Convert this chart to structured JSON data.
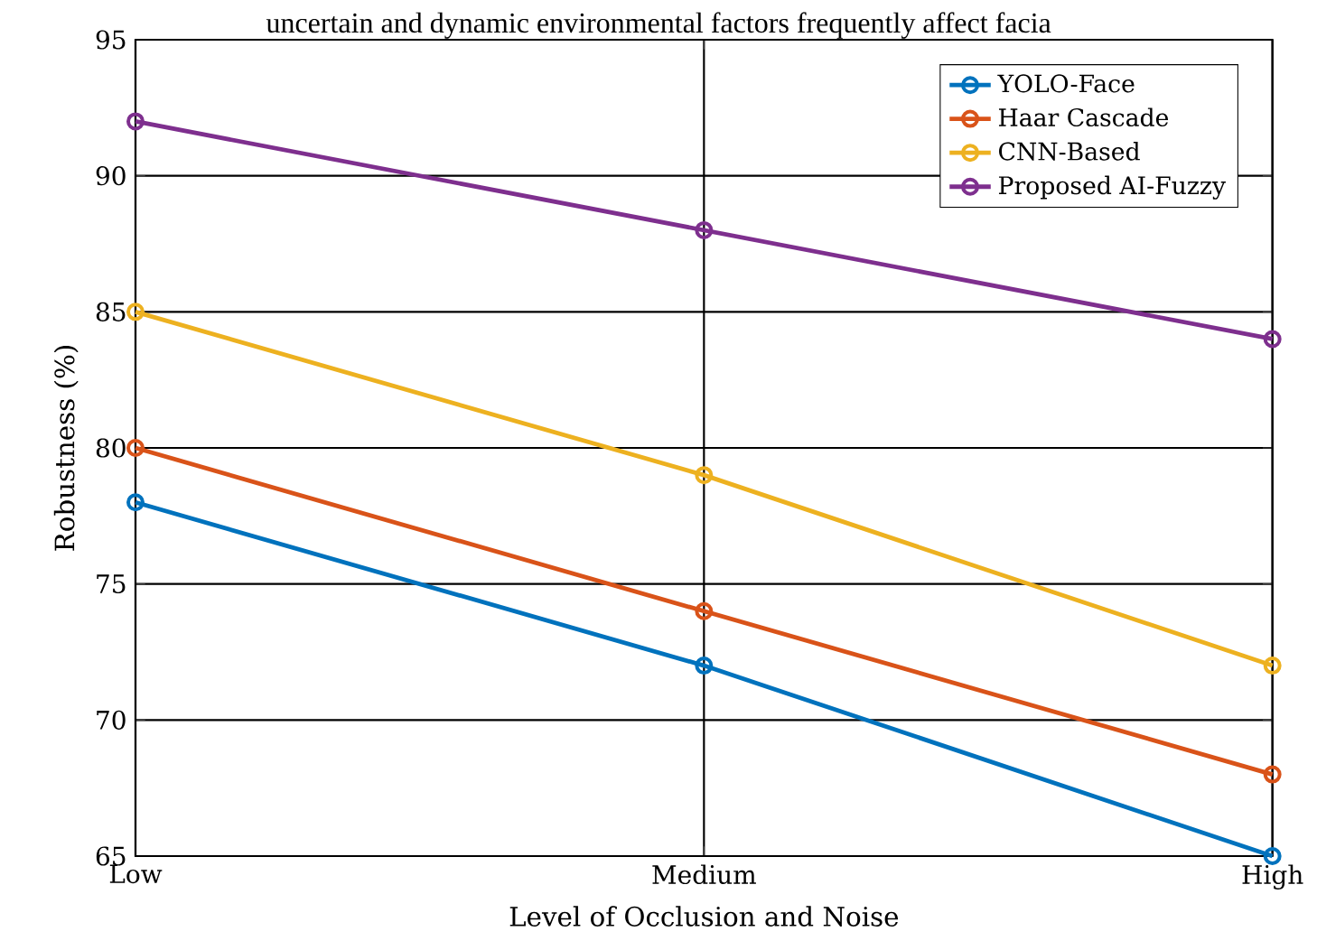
{
  "chart_data": {
    "type": "line",
    "annotations": [
      "uncertain and dynamic environmental factors frequently affect facia"
    ],
    "xlabel": "Level of Occlusion and Noise",
    "ylabel": "Robustness (%)",
    "categories": [
      "Low",
      "Medium",
      "High"
    ],
    "ylim": [
      65,
      95
    ],
    "yticks": [
      65,
      70,
      75,
      80,
      85,
      90,
      95
    ],
    "grid": true,
    "legend": "top right",
    "marker": "circle",
    "line_style": "solid",
    "series": [
      {
        "name": "YOLO-Face",
        "color": "#0072bd",
        "values": [
          78,
          72,
          65
        ]
      },
      {
        "name": "Haar Cascade",
        "color": "#d95319",
        "values": [
          80,
          74,
          68
        ]
      },
      {
        "name": "CNN-Based",
        "color": "#edb120",
        "values": [
          85,
          79,
          72
        ]
      },
      {
        "name": "Proposed AI-Fuzzy",
        "color": "#7e2f8e",
        "values": [
          92,
          88,
          84
        ]
      }
    ]
  }
}
